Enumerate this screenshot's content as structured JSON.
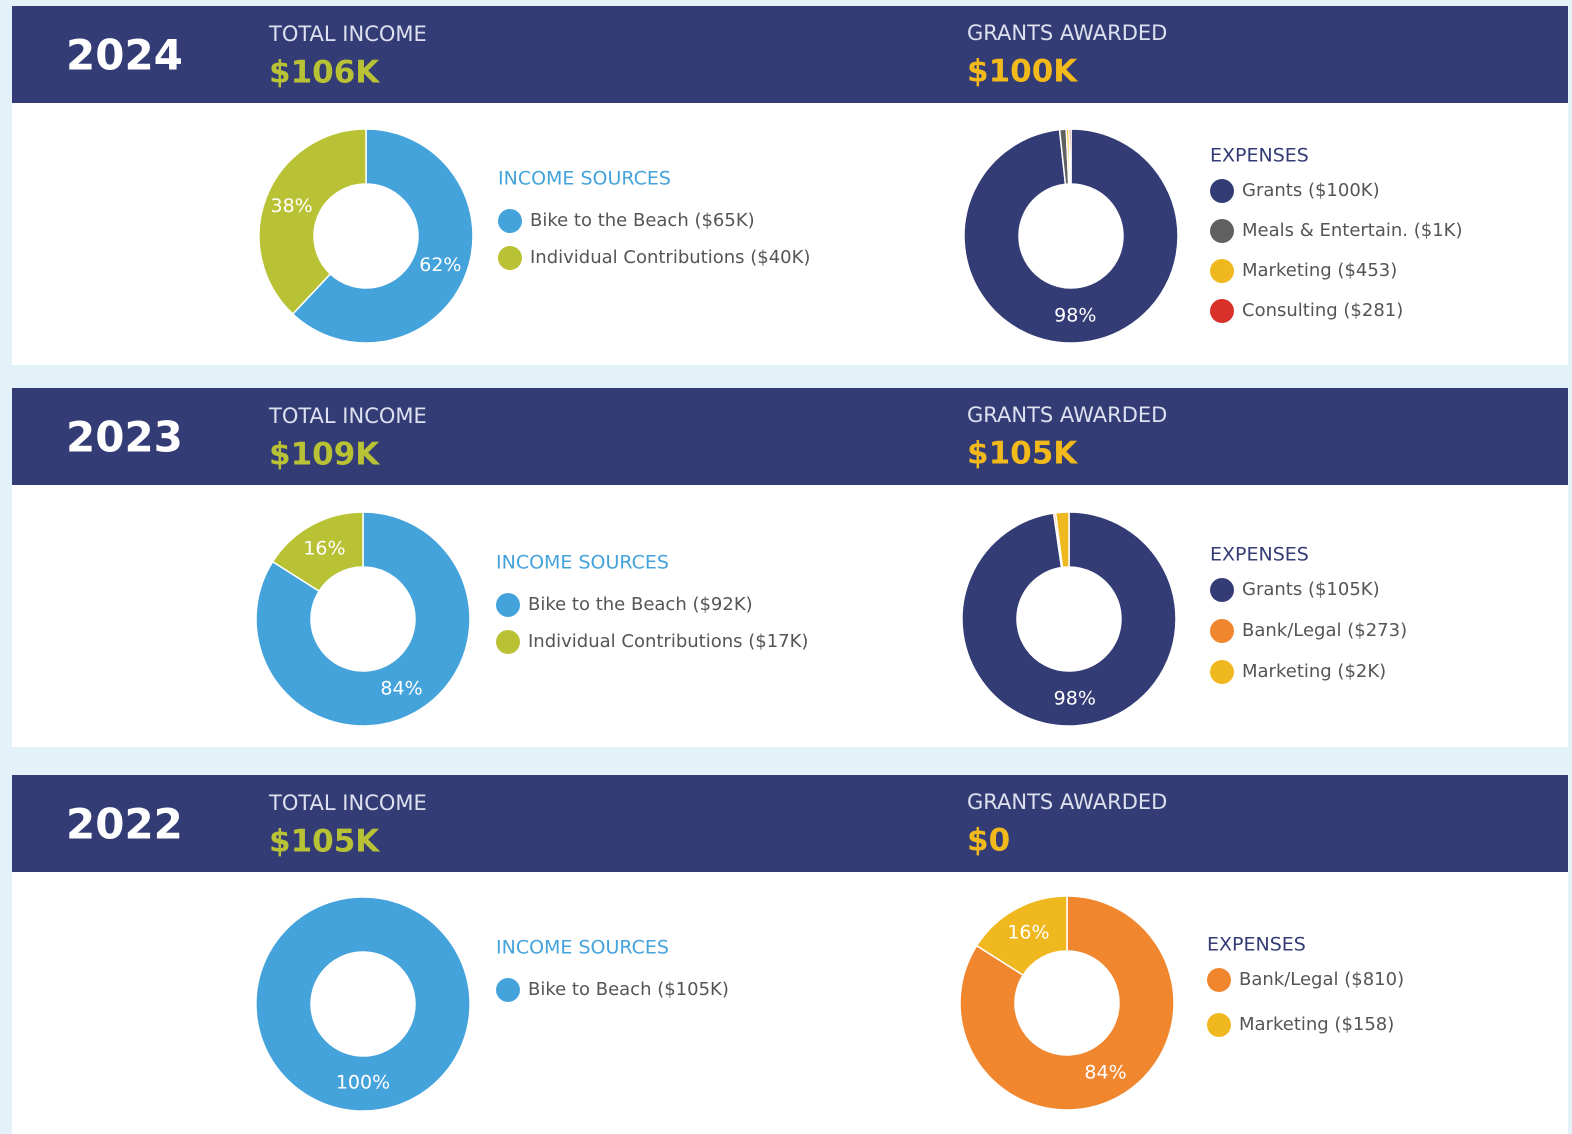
{
  "sections": [
    {
      "year": "2024",
      "income_label": "TOTAL INCOME",
      "income": "$106K",
      "grants_label": "GRANTS AWARDED",
      "grants": "$100K"
    },
    {
      "year": "2023",
      "income_label": "TOTAL INCOME",
      "income": "$109K",
      "grants_label": "GRANTS AWARDED",
      "grants": "$105K"
    },
    {
      "year": "2022",
      "income_label": "TOTAL INCOME",
      "income": "$105K",
      "grants_label": "GRANTS AWARDED",
      "grants": "$0"
    }
  ],
  "chart_data": [
    {
      "type": "pie",
      "title": "INCOME SOURCES",
      "categories": [
        "Bike to the Beach ($65K)",
        "Individual Contributions ($40K)"
      ],
      "values": [
        62,
        38
      ],
      "value_labels": [
        "62%",
        "38%"
      ],
      "colors": [
        "#45a3db",
        "#b9c234"
      ]
    },
    {
      "type": "pie",
      "title": "EXPENSES",
      "categories": [
        "Grants ($100K)",
        "Meals & Entertain. ($1K)",
        "Marketing ($453)",
        "Consulting ($281)"
      ],
      "values": [
        98,
        1,
        0.4,
        0.3
      ],
      "value_labels": [
        "98%",
        null,
        null,
        null
      ],
      "colors": [
        "#343c76",
        "#606060",
        "#f0b81f",
        "#d9312a"
      ]
    },
    {
      "type": "pie",
      "title": "INCOME SOURCES",
      "categories": [
        "Bike to the Beach ($92K)",
        "Individual Contributions ($17K)"
      ],
      "values": [
        84,
        16
      ],
      "value_labels": [
        "84%",
        "16%"
      ],
      "colors": [
        "#45a3db",
        "#b9c234"
      ]
    },
    {
      "type": "pie",
      "title": "EXPENSES",
      "categories": [
        "Grants ($105K)",
        "Bank/Legal ($273)",
        "Marketing ($2K)"
      ],
      "values": [
        98,
        0.3,
        2
      ],
      "value_labels": [
        "98%",
        null,
        null
      ],
      "colors": [
        "#343c76",
        "#f0862e",
        "#f0b81f"
      ]
    },
    {
      "type": "pie",
      "title": "INCOME SOURCES",
      "categories": [
        "Bike to Beach ($105K)"
      ],
      "values": [
        100
      ],
      "value_labels": [
        "100%"
      ],
      "colors": [
        "#45a3db"
      ]
    },
    {
      "type": "pie",
      "title": "EXPENSES",
      "categories": [
        "Bank/Legal ($810)",
        "Marketing ($158)"
      ],
      "values": [
        84,
        16
      ],
      "value_labels": [
        "84%",
        "16%"
      ],
      "colors": [
        "#f0862e",
        "#f0b81f"
      ]
    }
  ]
}
